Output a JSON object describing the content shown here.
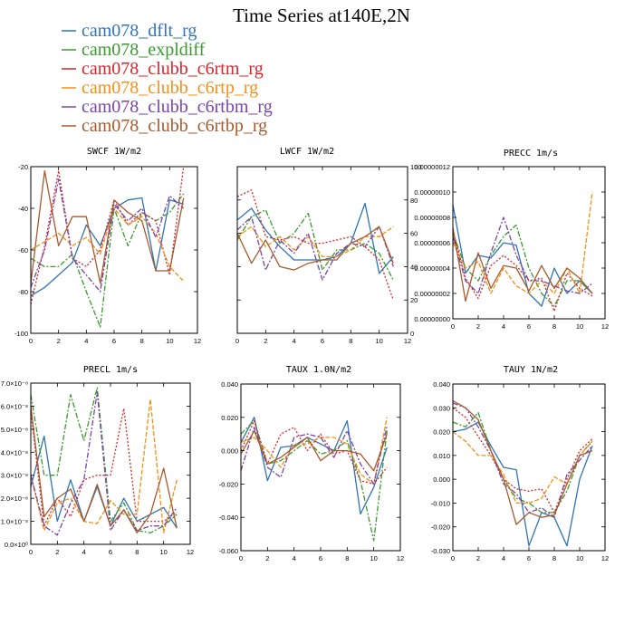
{
  "figure": {
    "title": "Time Series at140E,2N"
  },
  "legend": [
    {
      "name": "cam078_dflt_rg",
      "color": "#2f74b5"
    },
    {
      "name": "cam078_expldiff",
      "color": "#3a9a2e"
    },
    {
      "name": "cam078_clubb_c6rtm_rg",
      "color": "#d6262b"
    },
    {
      "name": "cam078_clubb_c6rtp_rg",
      "color": "#f39015"
    },
    {
      "name": "cam078_clubb_c6rtbm_rg",
      "color": "#7a45a6"
    },
    {
      "name": "cam078_clubb_c6rtbp_rg",
      "color": "#a85a2c"
    }
  ],
  "chart_data": [
    {
      "type": "line",
      "title": "SWCF   1W/m2",
      "xlim": [
        0,
        12
      ],
      "ylim": [
        -100,
        -20
      ],
      "xticks": [
        "0",
        "2",
        "4",
        "6",
        "8",
        "10",
        "12"
      ],
      "yticks": [
        "-100",
        "-80",
        "-60",
        "-40",
        "-20"
      ],
      "x": [
        0,
        1,
        2,
        3,
        4,
        5,
        6,
        7,
        8,
        9,
        10,
        11
      ],
      "series": [
        {
          "values": [
            -82,
            -78,
            -72,
            -66,
            -48,
            -58,
            -40,
            -36,
            -35,
            -70,
            -36,
            -38
          ]
        },
        {
          "values": [
            -64,
            -68,
            -68,
            -62,
            -80,
            -97,
            -40,
            -58,
            -42,
            -46,
            -42,
            -33
          ]
        },
        {
          "values": [
            -86,
            -58,
            -22,
            -64,
            -68,
            -60,
            -36,
            -48,
            -42,
            -46,
            -72,
            -20
          ]
        },
        {
          "values": [
            -60,
            -56,
            -52,
            -58,
            -54,
            -62,
            -40,
            -48,
            -44,
            -52,
            -68,
            -75
          ]
        },
        {
          "values": [
            -78,
            -60,
            -26,
            -64,
            -72,
            -80,
            -38,
            -46,
            -40,
            -54,
            -34,
            -40
          ]
        },
        {
          "values": [
            -76,
            -22,
            -58,
            -44,
            -44,
            -76,
            -36,
            -42,
            -46,
            -70,
            -70,
            -35
          ]
        }
      ]
    },
    {
      "type": "line",
      "title": "LWCF   1W/m2",
      "xlim": [
        0,
        12
      ],
      "ylim": [
        0,
        100
      ],
      "xticks": [
        "0",
        "2",
        "4",
        "6",
        "8",
        "10",
        "12"
      ],
      "yticks": [
        "0",
        "20",
        "40",
        "60",
        "80",
        "100"
      ],
      "x": [
        0,
        1,
        2,
        3,
        4,
        5,
        6,
        7,
        8,
        9,
        10,
        11
      ],
      "series": [
        {
          "values": [
            68,
            75,
            62,
            52,
            44,
            44,
            44,
            46,
            54,
            78,
            36,
            46
          ]
        },
        {
          "values": [
            56,
            70,
            74,
            54,
            60,
            72,
            38,
            50,
            50,
            54,
            48,
            32
          ]
        },
        {
          "values": [
            82,
            86,
            58,
            56,
            58,
            54,
            54,
            56,
            58,
            52,
            44,
            20
          ]
        },
        {
          "values": [
            58,
            64,
            52,
            58,
            50,
            58,
            46,
            46,
            50,
            58,
            58,
            64
          ]
        },
        {
          "values": [
            62,
            70,
            38,
            56,
            48,
            60,
            32,
            48,
            54,
            52,
            64,
            40
          ]
        },
        {
          "values": [
            60,
            42,
            56,
            40,
            38,
            42,
            44,
            44,
            54,
            58,
            64,
            42
          ]
        }
      ]
    },
    {
      "type": "line",
      "title": "PRECC   1m/s",
      "xlim": [
        0,
        12
      ],
      "ylim": [
        0,
        1.2e-07
      ],
      "xticks": [
        "0",
        "2",
        "4",
        "6",
        "8",
        "10",
        "12"
      ],
      "yticks": [
        "0.00000000",
        "0.00000002",
        "0.00000004",
        "0.00000006",
        "0.00000008",
        "0.00000010",
        "0.00000012"
      ],
      "x": [
        0,
        1,
        2,
        3,
        4,
        5,
        6,
        7,
        8,
        9,
        10,
        11
      ],
      "series": [
        {
          "values": [
            9e-08,
            3.6e-08,
            5e-08,
            4.8e-08,
            6e-08,
            5.8e-08,
            2e-08,
            1e-08,
            4e-08,
            2e-08,
            3e-08,
            2e-08
          ]
        },
        {
          "values": [
            6.8e-08,
            4e-08,
            3e-08,
            5e-08,
            6.5e-08,
            7.4e-08,
            4e-08,
            2e-08,
            1e-08,
            3e-08,
            3e-08,
            2e-08
          ]
        },
        {
          "values": [
            7e-08,
            3.2e-08,
            1.6e-08,
            4.2e-08,
            5e-08,
            4.2e-08,
            3e-08,
            3.2e-08,
            6e-09,
            3.6e-08,
            2.4e-08,
            1.8e-08
          ]
        },
        {
          "values": [
            6e-08,
            4e-08,
            4.5e-08,
            2e-08,
            4e-08,
            2.6e-08,
            2e-08,
            3e-08,
            2e-08,
            4e-08,
            2e-08,
            1e-07
          ]
        },
        {
          "values": [
            6.5e-08,
            3e-08,
            2e-08,
            5.2e-08,
            8e-08,
            5e-08,
            3e-08,
            3e-08,
            2.6e-08,
            2.2e-08,
            2e-08,
            2.8e-08
          ]
        },
        {
          "values": [
            7.2e-08,
            1.4e-08,
            5.2e-08,
            2.4e-08,
            4.2e-08,
            4e-08,
            2.2e-08,
            4.2e-08,
            2.4e-08,
            4e-08,
            3.2e-08,
            2e-08
          ]
        }
      ]
    },
    {
      "type": "line",
      "title": "PRECL   1m/s",
      "xlim": [
        0,
        12
      ],
      "ylim": [
        0,
        7e-08
      ],
      "xticks": [
        "0",
        "2",
        "4",
        "6",
        "8",
        "10",
        "12"
      ],
      "yticks": [
        "0.0×10⁰",
        "1.0×10⁻⁸",
        "2.0×10⁻⁸",
        "3.0×10⁻⁸",
        "4.0×10⁻⁸",
        "5.0×10⁻⁸",
        "6.0×10⁻⁸",
        "7.0×10⁻⁸"
      ],
      "x": [
        0,
        1,
        2,
        3,
        4,
        5,
        6,
        7,
        8,
        9,
        10,
        11
      ],
      "series": [
        {
          "values": [
            2.5e-08,
            4.7e-08,
            1e-08,
            2.8e-08,
            1e-08,
            2.5e-08,
            8e-09,
            2e-08,
            1e-08,
            1.3e-08,
            1.6e-08,
            7e-09
          ]
        },
        {
          "values": [
            6.5e-08,
            3e-08,
            3e-08,
            6.5e-08,
            4.5e-08,
            6.8e-08,
            1e-08,
            1.8e-08,
            6e-09,
            5e-09,
            8e-09,
            1.3e-08
          ]
        },
        {
          "values": [
            5.8e-08,
            8e-09,
            2e-08,
            1.2e-08,
            2.8e-08,
            3e-08,
            3e-08,
            5.9e-08,
            1e-08,
            1e-08,
            1e-08,
            1.4e-08
          ]
        },
        {
          "values": [
            3e-08,
            6e-09,
            1.8e-08,
            2e-08,
            1e-08,
            9e-09,
            1.9e-08,
            1.3e-08,
            1.3e-08,
            6.3e-08,
            5e-09,
            2.8e-08
          ]
        },
        {
          "values": [
            3e-08,
            8e-09,
            4e-09,
            1.8e-08,
            2.8e-08,
            6.6e-08,
            6e-09,
            1.5e-08,
            6e-09,
            8e-09,
            8e-09,
            1.6e-08
          ]
        },
        {
          "values": [
            6e-08,
            1.2e-08,
            2e-08,
            2.4e-08,
            1e-08,
            2.6e-08,
            8e-09,
            1.5e-08,
            5e-09,
            1.3e-08,
            3.3e-08,
            7e-09
          ]
        }
      ]
    },
    {
      "type": "line",
      "title": "TAUX   1.0N/m2",
      "xlim": [
        0,
        12
      ],
      "ylim": [
        -0.06,
        0.04
      ],
      "xticks": [
        "0",
        "2",
        "4",
        "6",
        "8",
        "10",
        "12"
      ],
      "yticks": [
        "-0.060",
        "-0.040",
        "-0.020",
        "0.000",
        "0.020",
        "0.040"
      ],
      "x": [
        0,
        1,
        2,
        3,
        4,
        5,
        6,
        7,
        8,
        9,
        10,
        11
      ],
      "series": [
        {
          "values": [
            0.005,
            0.02,
            -0.018,
            0.002,
            0.003,
            0.008,
            0.004,
            0.0,
            0.018,
            -0.038,
            -0.022,
            0.002
          ]
        },
        {
          "values": [
            0.01,
            0.018,
            -0.008,
            -0.006,
            0.0,
            0.006,
            -0.002,
            0.0,
            0.006,
            -0.018,
            -0.054,
            0.012
          ]
        },
        {
          "values": [
            0.0,
            0.018,
            -0.008,
            0.01,
            0.014,
            0.0,
            0.01,
            -0.002,
            0.0,
            -0.018,
            -0.02,
            -0.01
          ]
        },
        {
          "values": [
            0.005,
            0.008,
            0.0,
            -0.01,
            0.004,
            0.004,
            0.008,
            0.008,
            0.004,
            -0.014,
            -0.02,
            0.02
          ]
        },
        {
          "values": [
            -0.012,
            0.014,
            -0.01,
            -0.016,
            0.008,
            0.01,
            0.008,
            -0.004,
            0.012,
            -0.008,
            -0.02,
            0.015
          ]
        },
        {
          "values": [
            -0.002,
            0.012,
            -0.008,
            -0.004,
            0.002,
            0.008,
            -0.006,
            0.0,
            0.0,
            -0.002,
            -0.012,
            0.01
          ]
        }
      ]
    },
    {
      "type": "line",
      "title": "TAUY   1N/m2",
      "xlim": [
        0,
        12
      ],
      "ylim": [
        -0.03,
        0.04
      ],
      "xticks": [
        "0",
        "2",
        "4",
        "6",
        "8",
        "10",
        "12"
      ],
      "yticks": [
        "-0.030",
        "-0.020",
        "-0.010",
        "0.000",
        "0.010",
        "0.020",
        "0.030",
        "0.040"
      ],
      "x": [
        0,
        1,
        2,
        3,
        4,
        5,
        6,
        7,
        8,
        9,
        10,
        11
      ],
      "series": [
        {
          "values": [
            0.02,
            0.021,
            0.024,
            0.014,
            0.005,
            0.004,
            -0.028,
            -0.014,
            -0.016,
            -0.028,
            0.0,
            0.014
          ]
        },
        {
          "values": [
            0.024,
            0.022,
            0.028,
            0.012,
            0.0,
            -0.008,
            -0.01,
            -0.014,
            -0.014,
            -0.005,
            0.01,
            0.016
          ]
        },
        {
          "values": [
            0.03,
            0.026,
            0.018,
            0.01,
            0.0,
            -0.004,
            -0.005,
            -0.004,
            -0.014,
            0.0,
            0.012,
            0.017
          ]
        },
        {
          "values": [
            0.02,
            0.016,
            0.01,
            0.01,
            0.002,
            -0.01,
            -0.01,
            -0.008,
            0.001,
            -0.002,
            0.01,
            0.016
          ]
        },
        {
          "values": [
            0.032,
            0.03,
            0.022,
            0.012,
            -0.002,
            -0.006,
            -0.014,
            -0.012,
            -0.016,
            0.002,
            0.008,
            0.014
          ]
        },
        {
          "values": [
            0.033,
            0.03,
            0.025,
            0.012,
            0.0,
            -0.019,
            -0.014,
            -0.016,
            -0.015,
            -0.002,
            0.01,
            0.012
          ]
        }
      ]
    }
  ]
}
